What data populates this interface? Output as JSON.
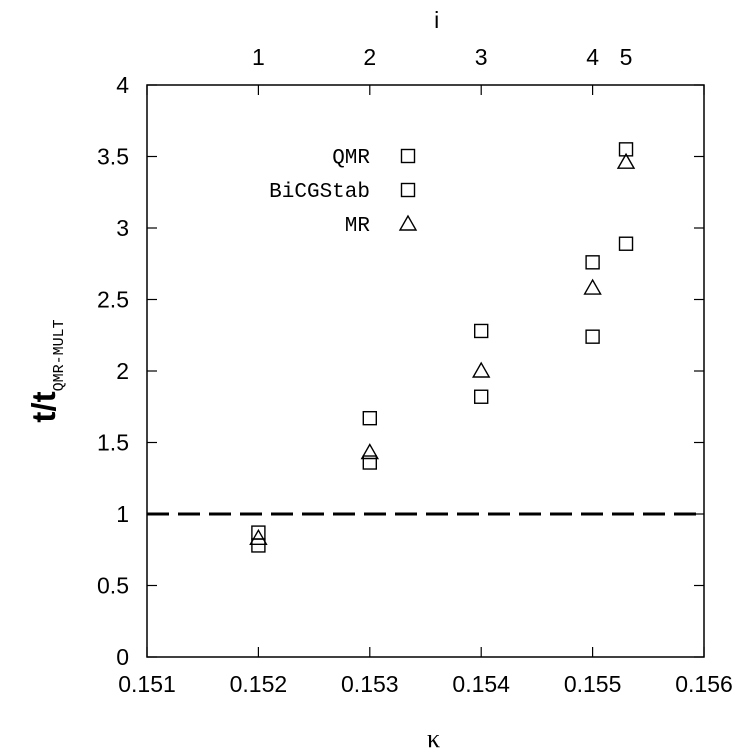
{
  "chart_data": {
    "type": "scatter",
    "title": "",
    "xlabel": "κ",
    "ylabel_main": "t/t",
    "ylabel_subscript": "QMR-MULT",
    "top_axis_label": "i",
    "xlim": [
      0.151,
      0.156
    ],
    "ylim": [
      0,
      4
    ],
    "x_ticks": [
      0.151,
      0.152,
      0.153,
      0.154,
      0.155,
      0.156
    ],
    "x_tick_labels": [
      "0.151",
      "0.152",
      "0.153",
      "0.154",
      "0.155",
      "0.156"
    ],
    "y_ticks": [
      0,
      0.5,
      1,
      1.5,
      2,
      2.5,
      3,
      3.5,
      4
    ],
    "y_tick_labels": [
      "0",
      "0.5",
      "1",
      "1.5",
      "2",
      "2.5",
      "3",
      "3.5",
      "4"
    ],
    "top_ticks": [
      {
        "x": 0.152,
        "label": "1"
      },
      {
        "x": 0.153,
        "label": "2"
      },
      {
        "x": 0.154,
        "label": "3"
      },
      {
        "x": 0.155,
        "label": "4"
      },
      {
        "x": 0.1553,
        "label": "5"
      }
    ],
    "reference_line": {
      "y": 1,
      "style": "dashed"
    },
    "legend_position": "upper-center",
    "series": [
      {
        "name": "QMR",
        "marker": "square",
        "x": [
          0.152,
          0.153,
          0.154,
          0.155,
          0.1553
        ],
        "y": [
          0.87,
          1.67,
          2.28,
          2.76,
          3.55
        ]
      },
      {
        "name": "BiCGStab",
        "marker": "square",
        "x": [
          0.152,
          0.153,
          0.154,
          0.155,
          0.1553
        ],
        "y": [
          0.78,
          1.36,
          1.82,
          2.24,
          2.89
        ]
      },
      {
        "name": "MR",
        "marker": "triangle",
        "x": [
          0.152,
          0.153,
          0.154,
          0.155,
          0.1553
        ],
        "y": [
          0.83,
          1.43,
          2.0,
          2.58,
          3.46
        ]
      }
    ]
  }
}
